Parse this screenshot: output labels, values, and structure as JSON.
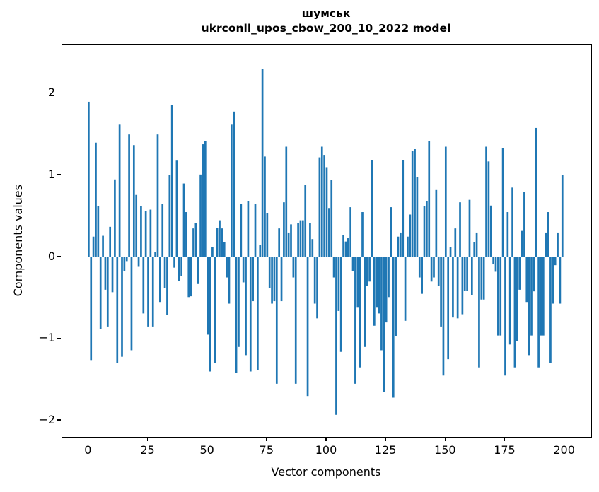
{
  "figure": {
    "title_line1": "шумськ",
    "title_line2": "ukrconll_upos_cbow_200_10_2022 model",
    "xlabel": "Vector components",
    "ylabel": "Components values"
  },
  "chart_data": {
    "type": "bar",
    "title": "шумськ\nukrconll_upos_cbow_200_10_2022 model",
    "xlabel": "Vector components",
    "ylabel": "Components values",
    "bar_color": "#1f77b4",
    "background_color": "#ffffff",
    "grid": false,
    "legend": "none",
    "x_start": 0,
    "n_bars": 200,
    "bar_width_units": 0.8,
    "xlim": [
      -11.1,
      211.1
    ],
    "ylim": [
      -2.2,
      2.6
    ],
    "xticks": [
      0,
      25,
      50,
      75,
      100,
      125,
      150,
      175,
      200
    ],
    "xticklabels": [
      "0",
      "25",
      "50",
      "75",
      "100",
      "125",
      "150",
      "175",
      "200"
    ],
    "yticks": [
      2,
      1,
      0,
      -1,
      -2
    ],
    "yticklabels": [
      "2",
      "1",
      "0",
      "−1",
      "−2"
    ],
    "values": [
      1.9,
      -1.26,
      0.25,
      1.4,
      0.62,
      -0.88,
      0.26,
      -0.4,
      -0.85,
      0.37,
      -0.43,
      0.95,
      -1.3,
      1.62,
      -1.22,
      -0.17,
      -0.05,
      1.5,
      -1.14,
      1.37,
      0.76,
      -0.12,
      0.62,
      -0.69,
      0.56,
      -0.85,
      0.58,
      -0.85,
      0.06,
      1.5,
      -0.55,
      0.65,
      -0.38,
      -0.71,
      1.0,
      1.86,
      -0.13,
      1.18,
      -0.29,
      -0.23,
      0.9,
      0.55,
      -0.49,
      -0.48,
      0.35,
      0.42,
      -0.33,
      1.01,
      1.38,
      1.42,
      -0.95,
      -1.4,
      0.12,
      -1.3,
      0.36,
      0.45,
      0.35,
      0.18,
      -0.25,
      -0.57,
      1.62,
      1.78,
      -1.42,
      -1.1,
      0.65,
      -0.31,
      -1.2,
      0.68,
      -1.4,
      -0.54,
      0.65,
      -1.38,
      0.15,
      2.3,
      1.23,
      0.54,
      -0.38,
      -0.57,
      -0.54,
      -1.55,
      0.35,
      -0.54,
      0.67,
      1.35,
      0.3,
      0.4,
      -0.25,
      -1.55,
      0.42,
      0.45,
      0.45,
      0.88,
      -1.7,
      0.42,
      0.22,
      -0.57,
      -0.75,
      1.22,
      1.35,
      1.25,
      1.1,
      0.6,
      0.94,
      -0.25,
      -1.93,
      -0.66,
      -1.16,
      0.27,
      0.19,
      0.23,
      0.61,
      -0.17,
      -1.55,
      -0.62,
      -1.35,
      0.55,
      -1.1,
      -0.35,
      -0.3,
      1.19,
      -0.84,
      -0.62,
      -0.69,
      -1.14,
      -1.65,
      -0.8,
      -0.49,
      0.61,
      -1.72,
      -0.97,
      0.25,
      0.3,
      1.19,
      -0.78,
      0.25,
      0.52,
      1.3,
      1.32,
      0.98,
      -0.25,
      -0.45,
      0.62,
      0.68,
      1.42,
      -0.3,
      -0.25,
      0.82,
      -0.35,
      -0.85,
      -1.45,
      1.35,
      -1.25,
      0.12,
      -0.74,
      0.35,
      -0.75,
      0.67,
      -0.7,
      -0.41,
      -0.41,
      0.7,
      -0.47,
      0.18,
      0.3,
      -1.35,
      -0.52,
      -0.52,
      1.35,
      1.17,
      0.63,
      -0.09,
      -0.18,
      -0.96,
      -0.96,
      1.33,
      -1.45,
      0.55,
      -1.07,
      0.85,
      -1.35,
      -1.03,
      -0.4,
      0.32,
      0.8,
      -0.55,
      -1.2,
      -0.96,
      -0.42,
      1.58,
      -1.35,
      -0.96,
      -0.96,
      0.3,
      0.55,
      -1.3,
      -0.57,
      -0.1,
      0.3,
      -0.57,
      1.0
    ]
  }
}
